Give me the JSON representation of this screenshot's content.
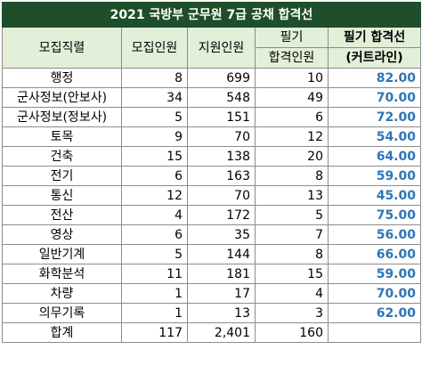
{
  "title": "2021 국방부 군무원 7급 공채  합격선",
  "headers": {
    "field": "모집직렬",
    "recruits": "모집인원",
    "applicants": "지원인원",
    "written_pass_line1": "필기",
    "written_pass_line2": "합격인원",
    "cutoff_line1": "필기 합격선",
    "cutoff_line2": "(커트라인)"
  },
  "rows": [
    {
      "field": "행정",
      "recruits": "8",
      "applicants": "699",
      "passed": "10",
      "cutoff": "82.00"
    },
    {
      "field": "군사정보(안보사)",
      "recruits": "34",
      "applicants": "548",
      "passed": "49",
      "cutoff": "70.00"
    },
    {
      "field": "군사정보(정보사)",
      "recruits": "5",
      "applicants": "151",
      "passed": "6",
      "cutoff": "72.00"
    },
    {
      "field": "토목",
      "recruits": "9",
      "applicants": "70",
      "passed": "12",
      "cutoff": "54.00"
    },
    {
      "field": "건축",
      "recruits": "15",
      "applicants": "138",
      "passed": "20",
      "cutoff": "64.00"
    },
    {
      "field": "전기",
      "recruits": "6",
      "applicants": "163",
      "passed": "8",
      "cutoff": "59.00"
    },
    {
      "field": "통신",
      "recruits": "12",
      "applicants": "70",
      "passed": "13",
      "cutoff": "45.00"
    },
    {
      "field": "전산",
      "recruits": "4",
      "applicants": "172",
      "passed": "5",
      "cutoff": "75.00"
    },
    {
      "field": "영상",
      "recruits": "6",
      "applicants": "35",
      "passed": "7",
      "cutoff": "56.00"
    },
    {
      "field": "일반기계",
      "recruits": "5",
      "applicants": "144",
      "passed": "8",
      "cutoff": "66.00"
    },
    {
      "field": "화학분석",
      "recruits": "11",
      "applicants": "181",
      "passed": "15",
      "cutoff": "59.00"
    },
    {
      "field": "차량",
      "recruits": "1",
      "applicants": "17",
      "passed": "4",
      "cutoff": "70.00"
    },
    {
      "field": "의무기록",
      "recruits": "1",
      "applicants": "13",
      "passed": "3",
      "cutoff": "62.00"
    }
  ],
  "total": {
    "field": "합계",
    "recruits": "117",
    "applicants": "2,401",
    "passed": "160",
    "cutoff": ""
  },
  "colors": {
    "title_bg": "#1e4f2a",
    "header_bg": "#e2efd9",
    "cutoff_text": "#2e75b6",
    "grid": "#8c8c8c"
  }
}
